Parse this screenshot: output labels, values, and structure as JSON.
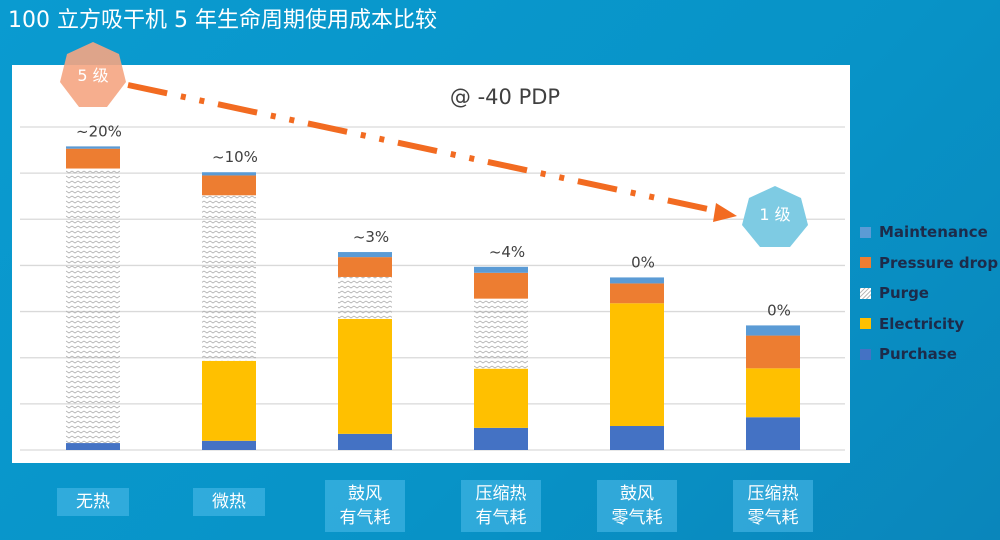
{
  "title": "100 立方吸干机 5 年生命周期使用成本比较",
  "annotations": {
    "start_badge": "5 级",
    "end_badge": "1 级"
  },
  "chart_data": {
    "type": "bar",
    "stacked": true,
    "subtitle": "@ -40 PDP",
    "categories": [
      [
        "无热"
      ],
      [
        "微热"
      ],
      [
        "鼓风",
        "有气耗"
      ],
      [
        "压缩热",
        "有气耗"
      ],
      [
        "鼓风",
        "零气耗"
      ],
      [
        "压缩热",
        "零气耗"
      ]
    ],
    "data_labels": [
      "~20%",
      "~10%",
      "~3%",
      "~4%",
      "0%",
      "0%"
    ],
    "ylim": [
      0,
      7
    ],
    "grid": true,
    "legend_position": "right",
    "series": [
      {
        "name": "Purchase",
        "color": "#4472c4",
        "values": [
          0.15,
          0.2,
          0.35,
          0.48,
          0.52,
          0.71
        ]
      },
      {
        "name": "Electricity",
        "color": "#ffc000",
        "values": [
          0,
          1.73,
          2.49,
          1.28,
          2.66,
          1.06
        ]
      },
      {
        "name": "Purge",
        "color": "pattern",
        "values": [
          5.95,
          3.59,
          0.91,
          1.52,
          0,
          0
        ]
      },
      {
        "name": "Pressure drop",
        "color": "#ed7d31",
        "values": [
          0.43,
          0.43,
          0.43,
          0.56,
          0.43,
          0.71
        ]
      },
      {
        "name": "Maintenance",
        "color": "#5b9bd5",
        "values": [
          0.05,
          0.07,
          0.11,
          0.13,
          0.13,
          0.22
        ]
      }
    ]
  }
}
